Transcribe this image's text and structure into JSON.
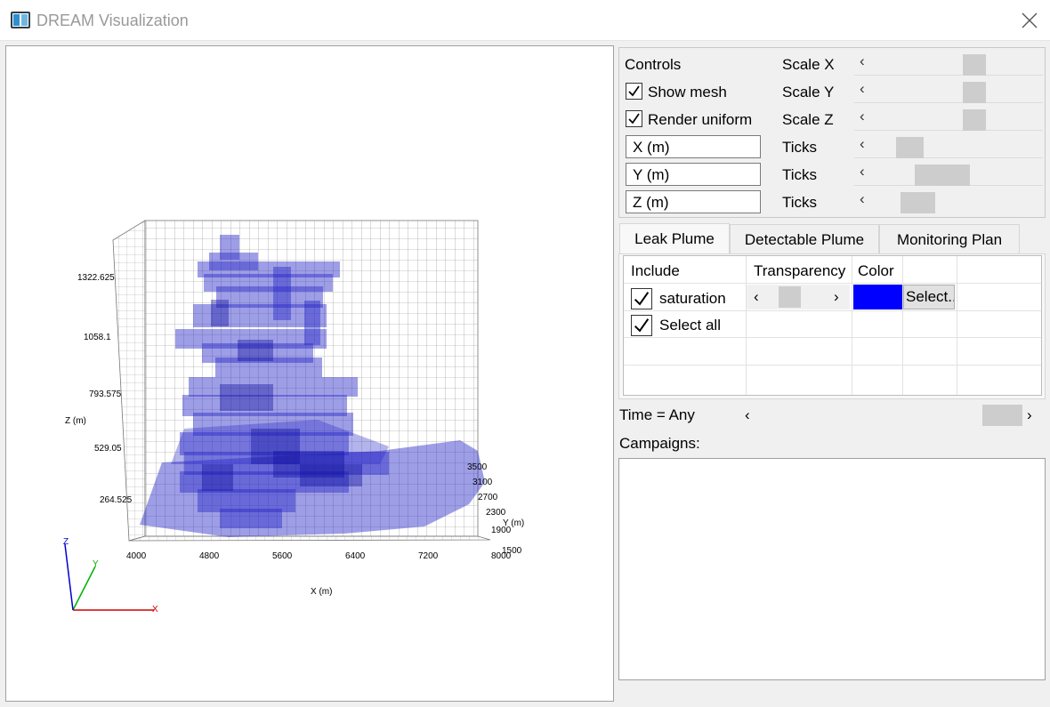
{
  "window": {
    "title": "DREAM Visualization",
    "close_glyph": "✕"
  },
  "plot": {
    "z_ticks": [
      "1322.625",
      "1058.1",
      "793.575",
      "529.05",
      "264.525"
    ],
    "z_label": "Z (m)",
    "x_ticks": [
      "4000",
      "4800",
      "5600",
      "6400",
      "7200",
      "8000"
    ],
    "x_label": "X (m)",
    "y_ticks": [
      "3500",
      "3100",
      "2700",
      "2300",
      "1900",
      "1500"
    ],
    "y_label": "Y (m)",
    "axes": {
      "x": "X",
      "y": "Y",
      "z": "Z"
    },
    "colors": {
      "plume": "#2020c8",
      "axis_x": "#d00000",
      "axis_y": "#00b000",
      "axis_z": "#0000d0",
      "mesh": "#777777"
    }
  },
  "controls": {
    "header": "Controls",
    "show_mesh": {
      "label": "Show mesh",
      "checked": true
    },
    "render_uniform": {
      "label": "Render uniform",
      "checked": true
    },
    "x_field": "X (m)",
    "y_field": "Y (m)",
    "z_field": "Z (m)",
    "scale_x": "Scale X",
    "scale_y": "Scale Y",
    "scale_z": "Scale Z",
    "ticks_label": "Ticks",
    "arrow_left": "‹"
  },
  "tabs": [
    {
      "label": "Leak Plume",
      "active": true
    },
    {
      "label": "Detectable Plume",
      "active": false
    },
    {
      "label": "Monitoring Plan",
      "active": false
    }
  ],
  "plume_table": {
    "headers": {
      "include": "Include",
      "transparency": "Transparency",
      "color": "Color"
    },
    "rows": [
      {
        "label": "saturation",
        "checked": true,
        "color": "#0000ff",
        "select_label": "Select..."
      },
      {
        "label": "Select all",
        "checked": true
      }
    ],
    "arrow_left": "‹",
    "arrow_right": "›"
  },
  "time": {
    "label": "Time = Any",
    "arrow_left": "‹",
    "arrow_right": "›"
  },
  "campaigns": {
    "label": "Campaigns:"
  }
}
